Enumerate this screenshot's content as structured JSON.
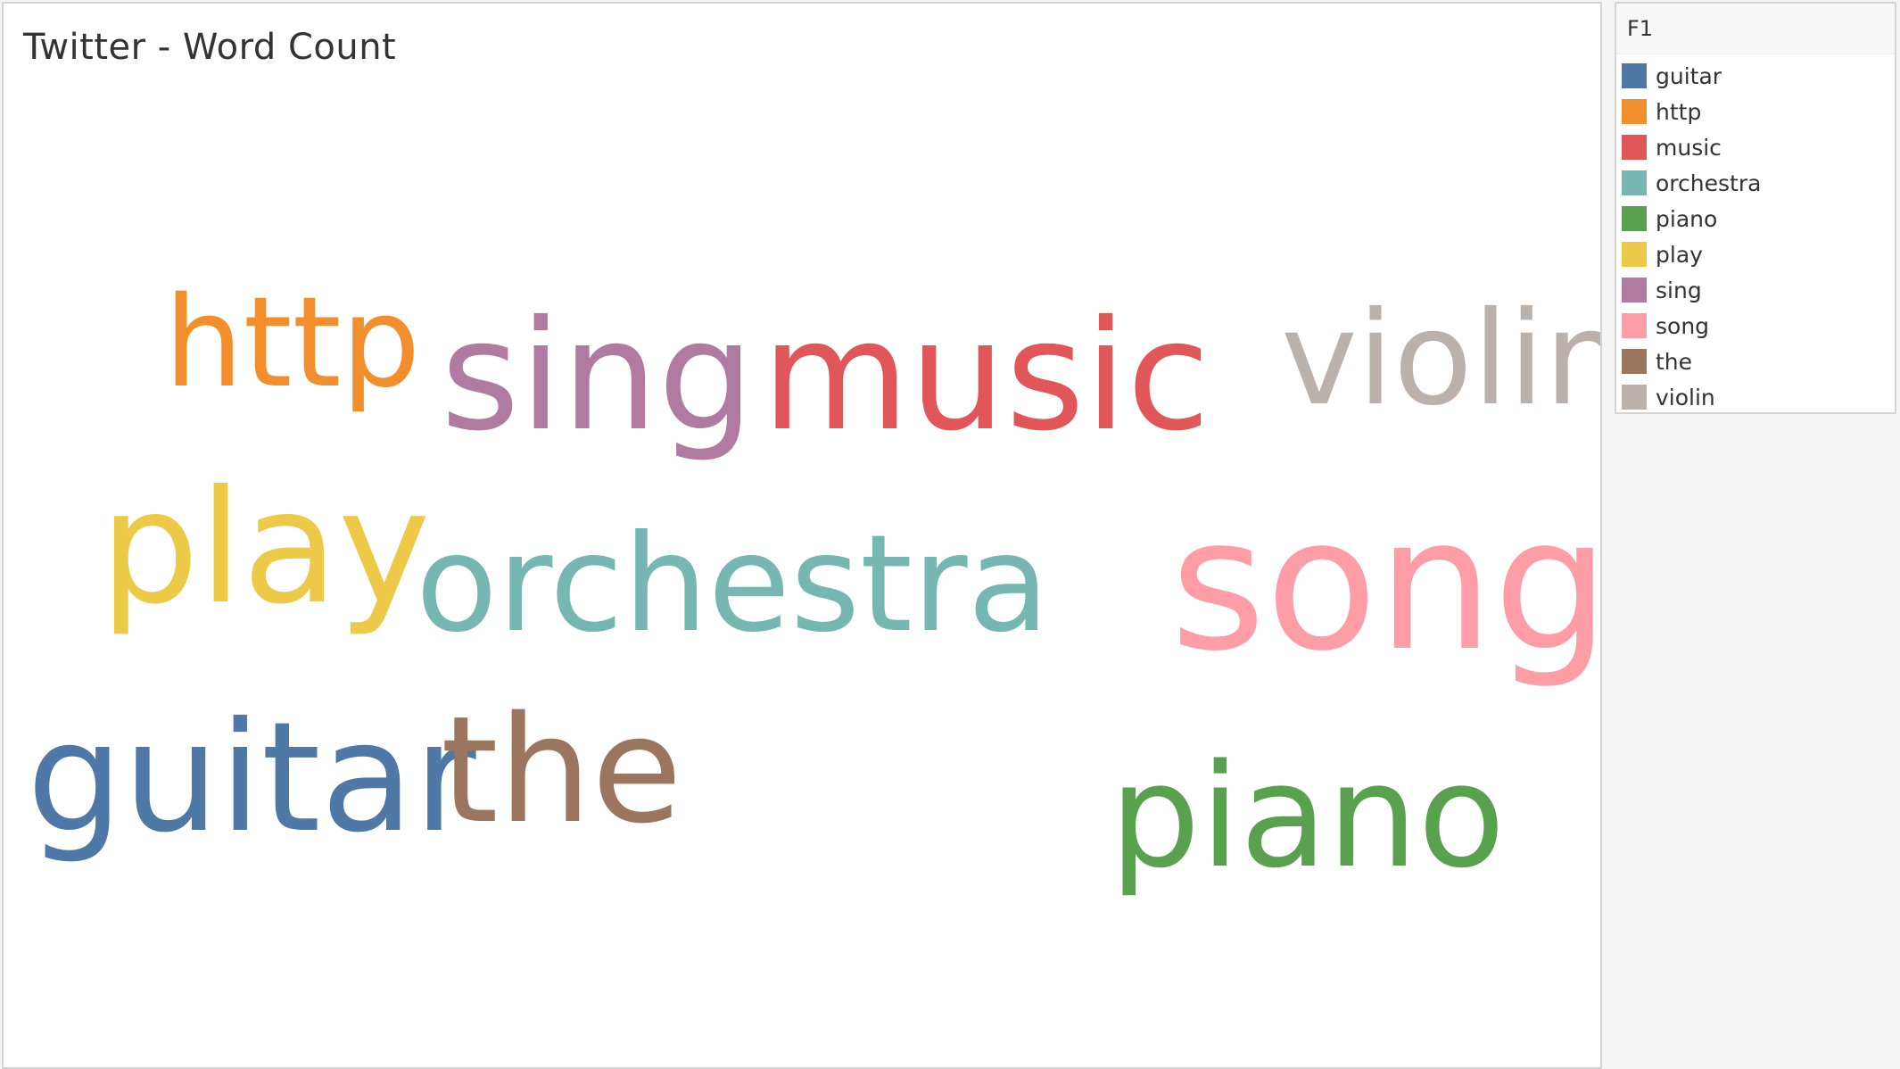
{
  "chart_data": {
    "type": "wordcloud",
    "title": "Twitter - Word Count",
    "legend_title": "F1",
    "legend_placement": "right",
    "words": [
      {
        "text": "guitar",
        "color": "#4e79a7",
        "weight": 4
      },
      {
        "text": "http",
        "color": "#f28e2b",
        "weight": 3
      },
      {
        "text": "music",
        "color": "#e15759",
        "weight": 4
      },
      {
        "text": "orchestra",
        "color": "#76b7b2",
        "weight": 3
      },
      {
        "text": "piano",
        "color": "#59a14f",
        "weight": 4
      },
      {
        "text": "play",
        "color": "#edc948",
        "weight": 4
      },
      {
        "text": "sing",
        "color": "#b07aa1",
        "weight": 4
      },
      {
        "text": "song",
        "color": "#ff9da7",
        "weight": 5
      },
      {
        "text": "the",
        "color": "#9c755f",
        "weight": 4
      },
      {
        "text": "violin",
        "color": "#bab0ac",
        "weight": 4
      }
    ]
  }
}
